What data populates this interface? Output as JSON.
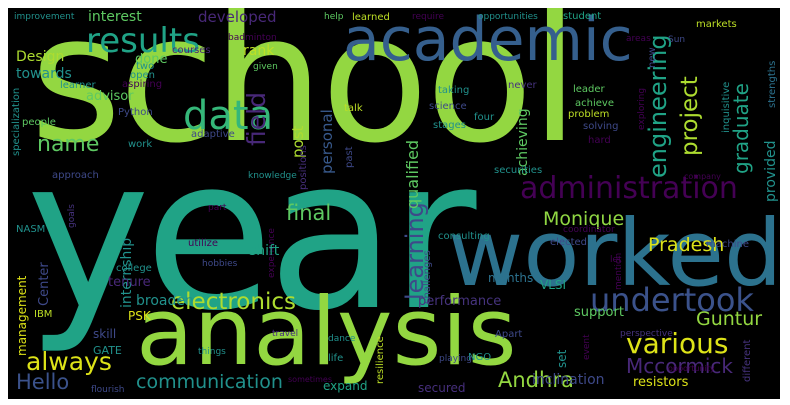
{
  "palette": {
    "background": "#000000",
    "yellow_green": "#93d741",
    "green": "#52c569",
    "teal": "#20a386",
    "blue": "#355f8d",
    "indigo": "#46337e",
    "purple": "#440154",
    "yellow": "#dde318"
  },
  "words": {
    "school": "school",
    "year": "year",
    "worked": "worked",
    "analysis": "analysis",
    "academic": "academic",
    "results": "results",
    "data": "data",
    "field": "field",
    "name": "name",
    "learning": "learning",
    "engineering": "engineering",
    "administration": "administration",
    "undertook": "undertook",
    "various": "various",
    "electronics": "electronics",
    "always": "always",
    "hello": "Hello",
    "communication": "communication",
    "mccormick": "Mccormick",
    "andhra": "Andhra",
    "pradesh": "Pradesh",
    "guntur": "Guntur",
    "final": "final",
    "monique": "Monique",
    "project": "project",
    "graduate": "graduate",
    "interest": "interest",
    "developed": "developed",
    "design": "Design",
    "towards": "towards",
    "rank": "rank",
    "done": "done",
    "advisor": "advisor",
    "qualified": "qualified",
    "personal": "personal",
    "post": "post",
    "internship": "internship",
    "shift": "shift",
    "tenure": "tenure",
    "broaden": "broaden",
    "psk": "PSK",
    "skill": "skill",
    "gate": "GATE",
    "center": "Center",
    "management": "management",
    "ibm": "IBM",
    "nasm": "NASM",
    "performance": "performance",
    "months": "months",
    "vlsi": "VLSI",
    "support": "support",
    "set": "set",
    "expand": "expand",
    "secured": "secured",
    "inclination": "inclination",
    "resistors": "resistors",
    "provided": "provided",
    "achieving": "achieving",
    "improvement": "improvement",
    "help": "help",
    "learned": "learned",
    "require": "require",
    "opportunities": "opportunities",
    "student": "student",
    "markets": "markets",
    "badminton": "badminton",
    "courses": "courses",
    "areas": "areas",
    "new": "new",
    "sun": "Sun",
    "two": "two",
    "open": "open",
    "aspiring": "aspiring",
    "learner": "learner",
    "python": "Python",
    "adaptive": "adaptive",
    "given": "given",
    "never": "never",
    "taking": "taking",
    "leader": "leader",
    "achieve": "achieve",
    "science": "science",
    "four": "four",
    "problem": "problem",
    "solving": "solving",
    "hard": "hard",
    "stages": "stages",
    "talk": "talk",
    "people": "people",
    "work": "work",
    "specialization": "specialization",
    "approach": "approach",
    "goals": "goals",
    "knowledge": "knowledge",
    "part": "part",
    "experience": "experience",
    "positions": "positions",
    "past": "past",
    "securities": "securities",
    "company": "company",
    "machine": "machine",
    "coordinator": "coordinator",
    "elected": "elected",
    "consulting": "consulting",
    "challenges": "challenges",
    "let": "let",
    "mention": "mention",
    "college": "college",
    "hobbies": "hobbies",
    "utilize": "utilize",
    "travel": "travel",
    "dance": "dance",
    "things": "things",
    "life": "life",
    "resilience": "resilience",
    "ngo": "NGO",
    "apart": "Apart",
    "playing": "playing",
    "event": "event",
    "perspective": "perspective",
    "different": "different",
    "opportunity": "opportunity",
    "flourish": "flourish",
    "sometimes": "sometimes",
    "exploring": "exploring",
    "inquisitive": "inquisitive",
    "strengths": "strengths"
  }
}
